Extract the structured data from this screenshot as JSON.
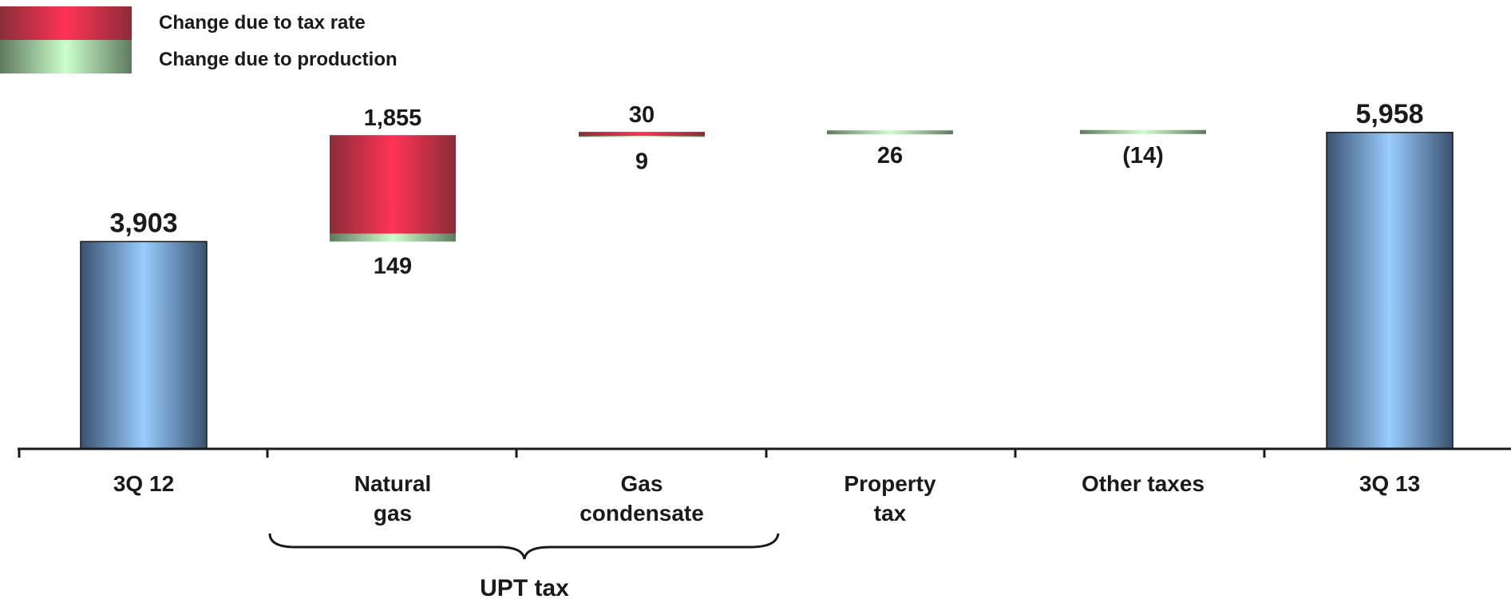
{
  "chart_data": {
    "type": "bar",
    "subtype": "waterfall",
    "legend": {
      "placement": "top-left",
      "entries": [
        {
          "key": "tax_rate",
          "label": "Change due to tax rate",
          "color": "#ff3355"
        },
        {
          "key": "production",
          "label": "Change due to production",
          "color": "#ccffcc"
        }
      ]
    },
    "categories": [
      {
        "id": "3q12",
        "lines": [
          "3Q 12"
        ]
      },
      {
        "id": "natural-gas",
        "lines": [
          "Natural",
          "gas"
        ]
      },
      {
        "id": "gas-condensate",
        "lines": [
          "Gas",
          "condensate"
        ]
      },
      {
        "id": "property-tax",
        "lines": [
          "Property",
          "tax"
        ]
      },
      {
        "id": "other-taxes",
        "lines": [
          "Other taxes"
        ]
      },
      {
        "id": "3q13",
        "lines": [
          "3Q 13"
        ]
      }
    ],
    "totals": [
      {
        "category": "3Q 12",
        "value": 3903,
        "label": "3,903"
      },
      {
        "category": "3Q 13",
        "value": 5958,
        "label": "5,958"
      }
    ],
    "changes": [
      {
        "category": "Natural gas",
        "segments": [
          {
            "type": "production",
            "value": 149,
            "label": "149"
          },
          {
            "type": "tax_rate",
            "value": 1855,
            "label": "1,855"
          }
        ]
      },
      {
        "category": "Gas condensate",
        "segments": [
          {
            "type": "production",
            "value": 9,
            "label": "9"
          },
          {
            "type": "tax_rate",
            "value": 30,
            "label": "30"
          }
        ]
      },
      {
        "category": "Property tax",
        "segments": [
          {
            "type": "production",
            "value": 26,
            "label": "26"
          }
        ]
      },
      {
        "category": "Other taxes",
        "segments": [
          {
            "type": "production",
            "value": -14,
            "label": "(14)"
          }
        ]
      }
    ],
    "group_brace": {
      "label": "UPT tax",
      "categories": [
        "Natural gas",
        "Gas condensate"
      ]
    },
    "ylim": [
      0,
      6000
    ],
    "grid": false,
    "colors": {
      "total": "#99ccff",
      "total_edge": "#3a5270",
      "tax_rate": "#ff3355",
      "production": "#ccffcc"
    }
  }
}
